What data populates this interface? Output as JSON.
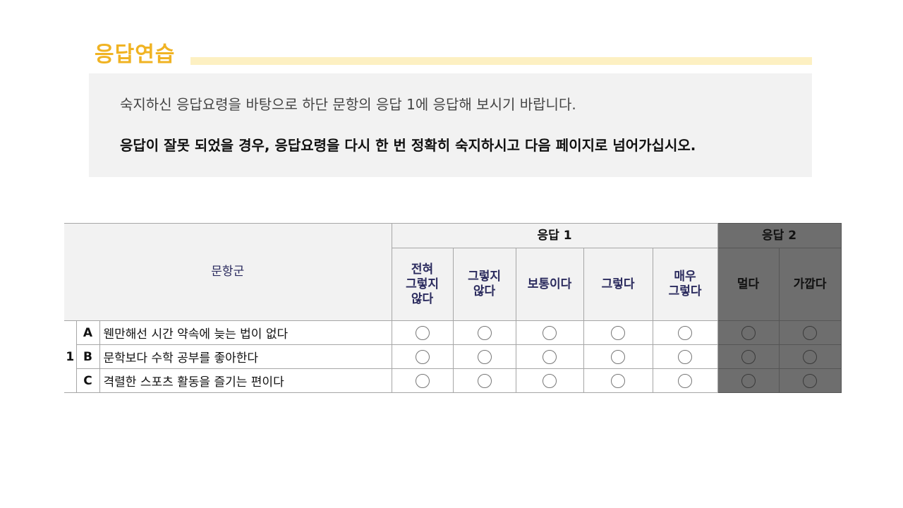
{
  "page": {
    "title": "응답연습",
    "instruction_line1": "숙지하신 응답요령을 바탕으로 하단 문항의 응답 1에 응답해 보시기 바랍니다.",
    "instruction_line2": "응답이 잘못 되었을 경우, 응답요령을 다시 한 번 정확히 숙지하시고 다음 페이지로 넘어가십시오."
  },
  "table": {
    "item_group_header": "문항군",
    "response1_header": "응답 1",
    "response2_header": "응답 2",
    "response1_options": [
      "전혀\n그렇지\n않다",
      "그렇지\n않다",
      "보통이다",
      "그렇다",
      "매우\n그렇다"
    ],
    "response2_options": [
      "멀다",
      "가깝다"
    ],
    "group_number": "1",
    "items": [
      {
        "letter": "A",
        "text": "웬만해선 시간 약속에 늦는 법이 없다"
      },
      {
        "letter": "B",
        "text": "문학보다 수학 공부를 좋아한다"
      },
      {
        "letter": "C",
        "text": "격렬한 스포츠 활동을 즐기는 편이다"
      }
    ]
  },
  "colors": {
    "title_accent": "#f0b323",
    "title_bar": "#fdf0c2",
    "instruction_bg": "#f2f2f2",
    "response2_bg": "#6e6e6e",
    "header_text": "#2b2b5e"
  }
}
